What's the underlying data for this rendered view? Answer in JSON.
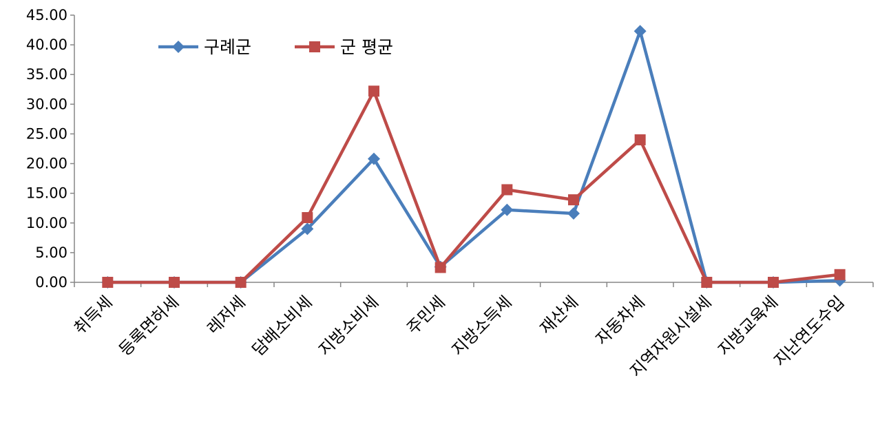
{
  "chart_data": {
    "type": "line",
    "categories": [
      "취득세",
      "등록면허세",
      "레저세",
      "담배소비세",
      "지방소비세",
      "주민세",
      "지방소득세",
      "재산세",
      "자동차세",
      "지역자원시설세",
      "지방교육세",
      "지난연도수입"
    ],
    "series": [
      {
        "name": "구례군",
        "color": "#4a7ebb",
        "marker": "diamond",
        "values": [
          0.0,
          0.0,
          0.0,
          9.0,
          20.8,
          2.6,
          12.2,
          11.6,
          42.3,
          0.0,
          0.0,
          0.3
        ]
      },
      {
        "name": "군 평균",
        "color": "#be4b48",
        "marker": "square",
        "values": [
          0.0,
          0.0,
          0.0,
          10.9,
          32.2,
          2.5,
          15.6,
          13.9,
          24.0,
          0.0,
          0.0,
          1.3
        ]
      }
    ],
    "ylim": [
      0,
      45
    ],
    "yticks": [
      "0.00",
      "5.00",
      "10.00",
      "15.00",
      "20.00",
      "25.00",
      "30.00",
      "35.00",
      "40.00",
      "45.00"
    ],
    "grid": false,
    "legend_position": "top-left"
  }
}
